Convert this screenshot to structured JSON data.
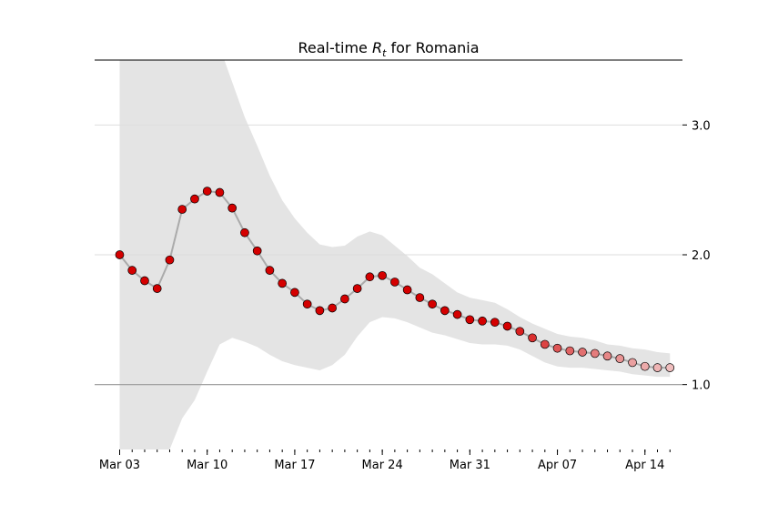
{
  "chart_data": {
    "type": "line",
    "title_parts": [
      "Real-time ",
      "R",
      "t",
      " for Romania"
    ],
    "x": [
      "Mar 03",
      "Mar 04",
      "Mar 05",
      "Mar 06",
      "Mar 07",
      "Mar 08",
      "Mar 09",
      "Mar 10",
      "Mar 11",
      "Mar 12",
      "Mar 13",
      "Mar 14",
      "Mar 15",
      "Mar 16",
      "Mar 17",
      "Mar 18",
      "Mar 19",
      "Mar 20",
      "Mar 21",
      "Mar 22",
      "Mar 23",
      "Mar 24",
      "Mar 25",
      "Mar 26",
      "Mar 27",
      "Mar 28",
      "Mar 29",
      "Mar 30",
      "Mar 31",
      "Apr 01",
      "Apr 02",
      "Apr 03",
      "Apr 04",
      "Apr 05",
      "Apr 06",
      "Apr 07",
      "Apr 08",
      "Apr 09",
      "Apr 10",
      "Apr 11",
      "Apr 12",
      "Apr 13",
      "Apr 14",
      "Apr 15",
      "Apr 16"
    ],
    "values": [
      2.0,
      1.88,
      1.8,
      1.74,
      1.96,
      2.35,
      2.43,
      2.49,
      2.48,
      2.36,
      2.17,
      2.03,
      1.88,
      1.78,
      1.71,
      1.62,
      1.57,
      1.59,
      1.66,
      1.74,
      1.83,
      1.84,
      1.79,
      1.73,
      1.67,
      1.62,
      1.57,
      1.54,
      1.5,
      1.49,
      1.48,
      1.45,
      1.41,
      1.36,
      1.31,
      1.28,
      1.26,
      1.25,
      1.24,
      1.22,
      1.2,
      1.17,
      1.14,
      1.13,
      1.13
    ],
    "lower": [
      0.3,
      0.3,
      0.35,
      0.4,
      0.5,
      0.74,
      0.88,
      1.1,
      1.31,
      1.36,
      1.33,
      1.29,
      1.23,
      1.18,
      1.15,
      1.13,
      1.11,
      1.15,
      1.23,
      1.37,
      1.48,
      1.52,
      1.51,
      1.48,
      1.44,
      1.4,
      1.38,
      1.35,
      1.32,
      1.31,
      1.31,
      1.3,
      1.27,
      1.22,
      1.17,
      1.14,
      1.13,
      1.13,
      1.12,
      1.11,
      1.1,
      1.08,
      1.07,
      1.06,
      1.06
    ],
    "upper": [
      4.6,
      4.5,
      4.4,
      4.3,
      4.2,
      4.0,
      3.9,
      3.7,
      3.6,
      3.33,
      3.06,
      2.84,
      2.61,
      2.42,
      2.28,
      2.17,
      2.08,
      2.06,
      2.07,
      2.14,
      2.18,
      2.15,
      2.07,
      1.99,
      1.9,
      1.85,
      1.78,
      1.71,
      1.67,
      1.65,
      1.63,
      1.58,
      1.52,
      1.47,
      1.43,
      1.39,
      1.37,
      1.36,
      1.34,
      1.31,
      1.3,
      1.28,
      1.27,
      1.25,
      1.24
    ],
    "point_colors": [
      "#d40000",
      "#d40000",
      "#d40000",
      "#d40000",
      "#d40000",
      "#d40000",
      "#d40000",
      "#d40000",
      "#d40000",
      "#d40000",
      "#d40000",
      "#d40000",
      "#d40000",
      "#d40000",
      "#d40000",
      "#d40000",
      "#d40000",
      "#d40000",
      "#d40000",
      "#d40000",
      "#d40000",
      "#d40000",
      "#d40000",
      "#d40000",
      "#d40000",
      "#d40000",
      "#d40000",
      "#d40000",
      "#d40000",
      "#d40000",
      "#d40000",
      "#d40000",
      "#d82020",
      "#da3030",
      "#dc4444",
      "#de5555",
      "#e06464",
      "#e27070",
      "#e47c7c",
      "#e68888",
      "#e89494",
      "#eaa0a0",
      "#ecaaaa",
      "#eeb4b4",
      "#f0bebe"
    ],
    "line_color": "#aaaaaa",
    "band_color": "#e4e4e4",
    "xlim": [
      "Mar 01",
      "Apr 17"
    ],
    "xticks": [
      "Mar 03",
      "Mar 10",
      "Mar 17",
      "Mar 24",
      "Mar 31",
      "Apr 07",
      "Apr 14"
    ],
    "ylim": [
      0.5,
      3.5
    ],
    "yticks": [
      {
        "value": 1,
        "label": "1.0"
      },
      {
        "value": 2,
        "label": "2.0"
      },
      {
        "value": 3,
        "label": "3.0"
      }
    ],
    "grid": true,
    "hline": 1,
    "hline_color": "#999999"
  }
}
